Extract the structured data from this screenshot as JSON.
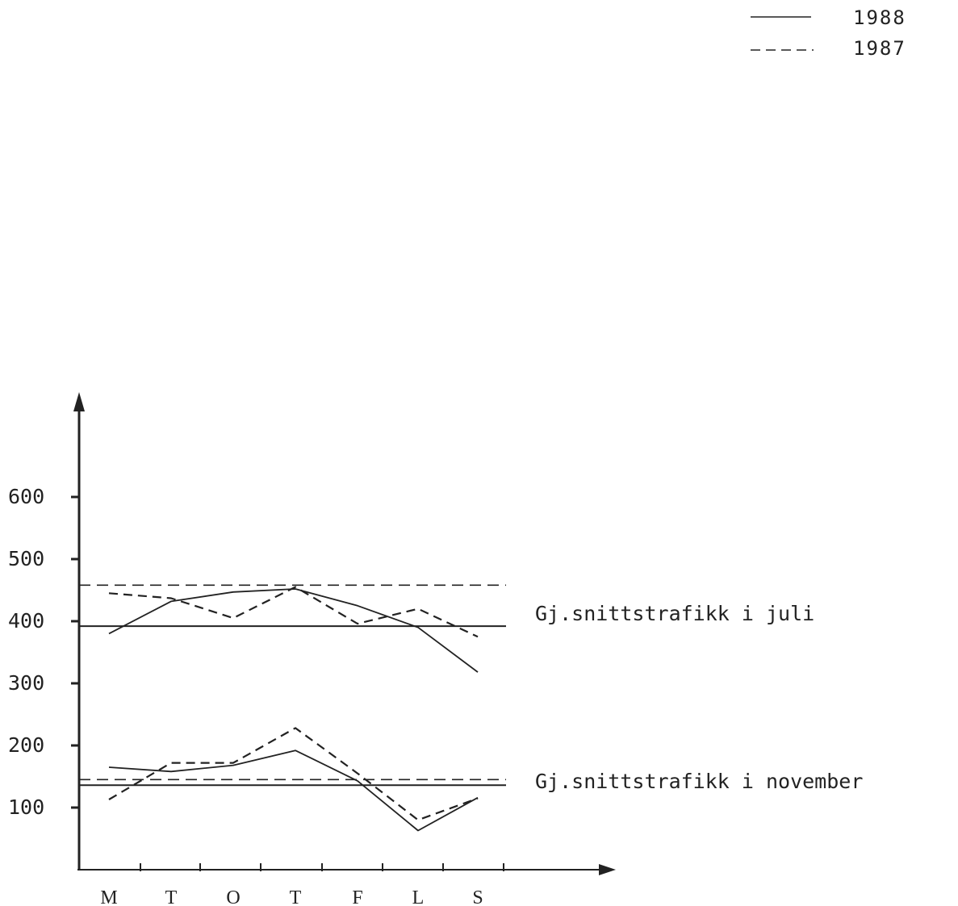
{
  "chart_data": {
    "type": "line",
    "categories": [
      "M",
      "T",
      "O",
      "T",
      "F",
      "L",
      "S"
    ],
    "yticks": [
      "600",
      "500",
      "400",
      "300",
      "200",
      "100"
    ],
    "ylim": [
      0,
      650
    ],
    "grid": false,
    "legend_position": "top-right",
    "legend": [
      {
        "label": "1988",
        "style": "solid"
      },
      {
        "label": "1987",
        "style": "dashed"
      }
    ],
    "annotations": [
      {
        "text": "Gj.snittstrafikk i juli",
        "y": 420
      },
      {
        "text": "Gj.snittstrafikk i november",
        "y": 140
      }
    ],
    "series": [
      {
        "name": "1988",
        "group": "juli",
        "style": "solid",
        "values": [
          380,
          432,
          447,
          452,
          425,
          390,
          318
        ]
      },
      {
        "name": "1987",
        "group": "juli",
        "style": "dashed",
        "values": [
          445,
          437,
          405,
          455,
          396,
          420,
          375
        ]
      },
      {
        "name": "1988",
        "group": "november",
        "style": "solid",
        "values": [
          165,
          158,
          168,
          192,
          143,
          63,
          116
        ]
      },
      {
        "name": "1987",
        "group": "november",
        "style": "dashed",
        "values": [
          113,
          172,
          172,
          228,
          155,
          80,
          115
        ]
      }
    ],
    "reference_lines": [
      {
        "group": "juli",
        "year": "1988",
        "style": "solid",
        "value": 392
      },
      {
        "group": "juli",
        "year": "1987",
        "style": "dashed",
        "value": 458
      },
      {
        "group": "november",
        "year": "1988",
        "style": "solid",
        "value": 136
      },
      {
        "group": "november",
        "year": "1987",
        "style": "dashed",
        "value": 145
      }
    ],
    "colors": {
      "ink": "#222222",
      "background": "#ffffff"
    }
  }
}
